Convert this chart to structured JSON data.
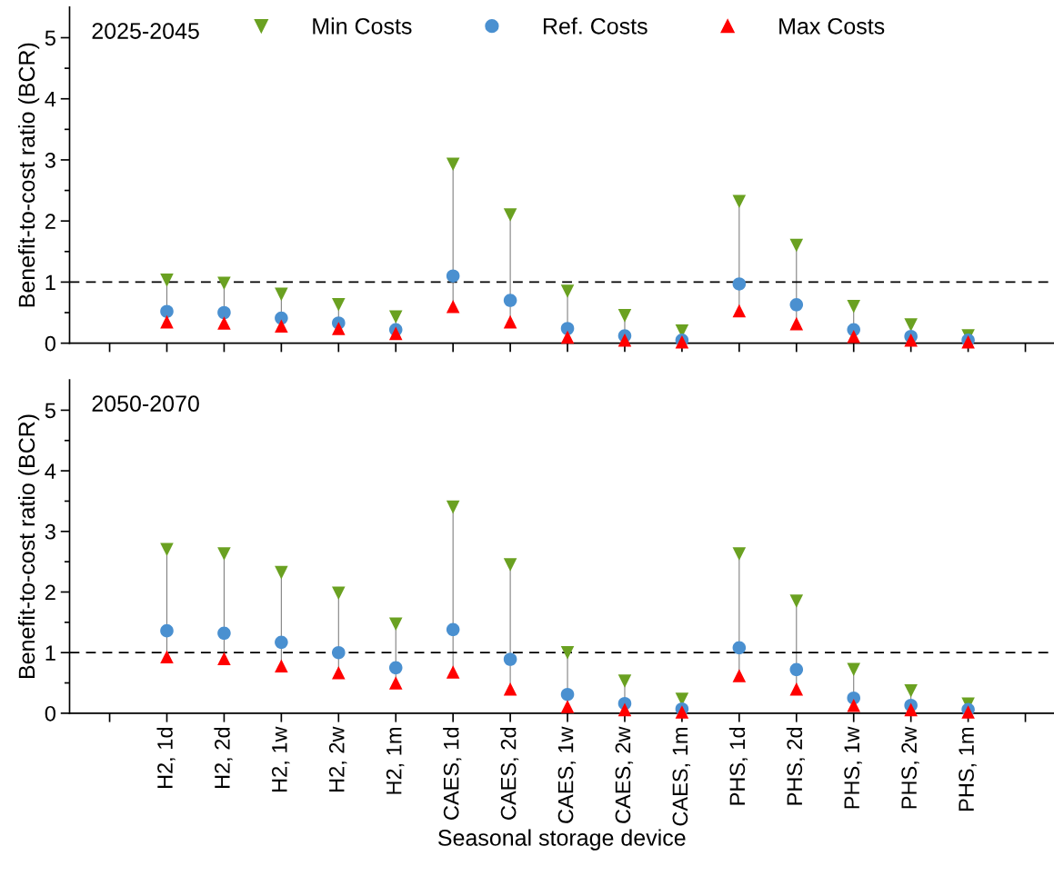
{
  "chart_data": [
    {
      "type": "scatter",
      "annotations": [
        "2025-2045"
      ],
      "ylabel": "Benefit-to-cost ratio (BCR)",
      "categories": [
        null,
        null,
        null,
        null,
        null,
        null,
        null,
        null,
        null,
        null,
        null,
        null,
        null,
        null,
        null,
        null,
        null
      ],
      "ylim": [
        0,
        5.5
      ],
      "yticks": [
        0,
        {
          "value": 0.5,
          "label": null
        },
        1,
        {
          "value": 1.5,
          "label": null
        },
        2,
        {
          "value": 2.5,
          "label": null
        },
        3,
        {
          "value": 3.5,
          "label": null
        },
        4,
        {
          "value": 4.5,
          "label": null
        },
        5
      ],
      "tick_labels": "y",
      "legend": "top",
      "grid": false,
      "ref_lines": [
        {
          "axis": "y",
          "value": 1,
          "color": "#000000",
          "line_style": "dashed"
        }
      ],
      "series": [
        {
          "name": "Min Costs",
          "color": "#6aa121",
          "marker": "triangle-down",
          "values": [
            null,
            1.03,
            0.98,
            0.8,
            0.63,
            0.43,
            2.93,
            2.1,
            0.85,
            0.45,
            0.2,
            2.32,
            1.6,
            0.6,
            0.3,
            0.12,
            null
          ]
        },
        {
          "name": "Ref. Costs",
          "color": "#4a90d0",
          "marker": "circle",
          "values": [
            null,
            0.52,
            0.5,
            0.41,
            0.33,
            0.22,
            1.1,
            0.7,
            0.24,
            0.12,
            0.05,
            0.97,
            0.63,
            0.22,
            0.11,
            0.05,
            null
          ]
        },
        {
          "name": "Max Costs",
          "color": "#ff0000",
          "marker": "triangle",
          "values": [
            null,
            0.35,
            0.33,
            0.28,
            0.24,
            0.16,
            0.6,
            0.35,
            0.1,
            0.05,
            0.02,
            0.53,
            0.32,
            0.11,
            0.05,
            0.02,
            null
          ]
        }
      ]
    },
    {
      "type": "scatter",
      "annotations": [
        "2050-2070"
      ],
      "ylabel": "Benefit-to-cost ratio (BCR)",
      "xlabel": "Seasonal storage device",
      "categories": [
        null,
        "H2, 1d",
        "H2, 2d",
        "H2, 1w",
        "H2, 2w",
        "H2, 1m",
        "CAES, 1d",
        "CAES, 2d",
        "CAES, 1w",
        "CAES, 2w",
        "CAES, 1m",
        "PHS, 1d",
        "PHS, 2d",
        "PHS, 1w",
        "PHS, 2w",
        "PHS, 1m",
        null
      ],
      "ylim": [
        0,
        5.5
      ],
      "yticks": [
        0,
        {
          "value": 0.5,
          "label": null
        },
        1,
        {
          "value": 1.5,
          "label": null
        },
        2,
        {
          "value": 2.5,
          "label": null
        },
        3,
        {
          "value": 3.5,
          "label": null
        },
        4,
        {
          "value": 4.5,
          "label": null
        },
        5
      ],
      "grid": false,
      "ref_lines": [
        {
          "axis": "y",
          "value": 1,
          "color": "#000000",
          "line_style": "dashed"
        }
      ],
      "series": [
        {
          "color": "#6aa121",
          "marker": "triangle-down",
          "values": [
            null,
            2.7,
            2.63,
            2.32,
            1.98,
            1.47,
            3.4,
            2.45,
            1.0,
            0.53,
            0.23,
            2.63,
            1.85,
            0.72,
            0.37,
            0.15,
            null
          ]
        },
        {
          "color": "#4a90d0",
          "marker": "circle",
          "values": [
            null,
            1.36,
            1.32,
            1.17,
            1.0,
            0.75,
            1.38,
            0.89,
            0.31,
            0.16,
            0.07,
            1.08,
            0.72,
            0.25,
            0.13,
            0.06,
            null
          ]
        },
        {
          "color": "#ff0000",
          "marker": "triangle",
          "values": [
            null,
            0.93,
            0.9,
            0.78,
            0.67,
            0.5,
            0.68,
            0.4,
            0.11,
            0.06,
            0.02,
            0.62,
            0.4,
            0.13,
            0.06,
            0.02,
            null
          ]
        }
      ]
    }
  ]
}
